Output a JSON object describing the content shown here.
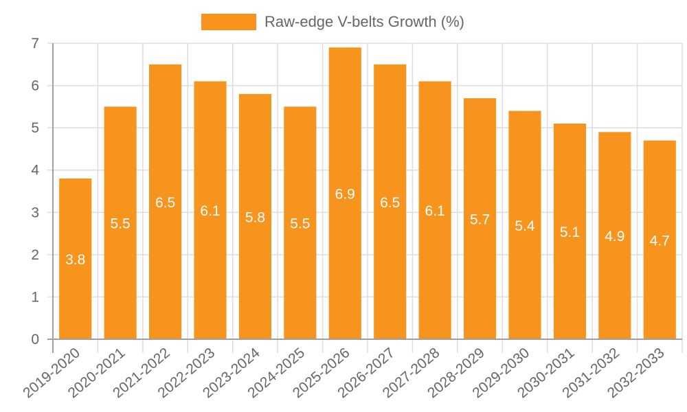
{
  "legend": {
    "label": "Raw-edge V-belts Growth (%)",
    "color": "#f7941d"
  },
  "colors": {
    "bar": "#f7941d",
    "grid": "#dddddd",
    "axis": "#a0a0a0",
    "tick_text": "#666666",
    "bar_label": "#ffffff"
  },
  "chart_data": {
    "type": "bar",
    "title": "",
    "xlabel": "",
    "ylabel": "",
    "legend": [
      "Raw-edge V-belts Growth (%)"
    ],
    "legend_position": "top",
    "grid": true,
    "ylim": [
      0,
      7
    ],
    "yticks": [
      0,
      1,
      2,
      3,
      4,
      5,
      6,
      7
    ],
    "categories": [
      "2019-2020",
      "2020-2021",
      "2021-2022",
      "2022-2023",
      "2023-2024",
      "2024-2025",
      "2025-2026",
      "2026-2027",
      "2027-2028",
      "2028-2029",
      "2029-2030",
      "2030-2031",
      "2031-2032",
      "2032-2033"
    ],
    "series": [
      {
        "name": "Raw-edge V-belts Growth (%)",
        "values": [
          3.8,
          5.5,
          6.5,
          6.1,
          5.8,
          5.5,
          6.9,
          6.5,
          6.1,
          5.7,
          5.4,
          5.1,
          4.9,
          4.7
        ]
      }
    ],
    "data_labels": [
      "3.8",
      "5.5",
      "6.5",
      "6.1",
      "5.8",
      "5.5",
      "6.9",
      "6.5",
      "6.1",
      "5.7",
      "5.4",
      "5.1",
      "4.9",
      "4.7"
    ]
  }
}
